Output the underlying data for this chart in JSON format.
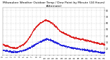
{
  "title": "Milwaukee Weather Outdoor Temp / Dew Point by Minute (24 Hours) (Alternate)",
  "title_fontsize": 3.2,
  "bg_color": "#ffffff",
  "plot_bg_color": "#ffffff",
  "text_color": "#000000",
  "grid_color": "#aaaaaa",
  "temp_color": "#dd2222",
  "dew_color": "#2222dd",
  "ylim": [
    10,
    85
  ],
  "xlim": [
    0,
    1440
  ],
  "yticks": [
    20,
    30,
    40,
    50,
    60,
    70,
    80
  ],
  "ytick_labels": [
    "20",
    "30",
    "40",
    "50",
    "60",
    "70",
    "80"
  ],
  "x_hours": [
    0,
    1,
    2,
    3,
    4,
    5,
    6,
    7,
    8,
    9,
    10,
    11,
    12,
    13,
    14,
    15,
    16,
    17,
    18,
    19,
    20,
    21,
    22,
    23,
    24
  ],
  "dot_size": 0.4,
  "temp_data": [
    27,
    26,
    25,
    25,
    24,
    23,
    22,
    22,
    22,
    21,
    21,
    22,
    23,
    24,
    25,
    26,
    27,
    29,
    31,
    34,
    37,
    40,
    43,
    47,
    50,
    53,
    55,
    57,
    59,
    61,
    62,
    63,
    64,
    65,
    65,
    64,
    63,
    62,
    61,
    59,
    57,
    55,
    53,
    51,
    49,
    47,
    46,
    45,
    44,
    43,
    42,
    41,
    40,
    39,
    38,
    38,
    37,
    37,
    36,
    36,
    35,
    35,
    35,
    34,
    34,
    33,
    33,
    32,
    32,
    31,
    31,
    30,
    30,
    29,
    29,
    28,
    28,
    28,
    27,
    27
  ],
  "dew_data": [
    18,
    17,
    17,
    17,
    16,
    16,
    16,
    15,
    15,
    15,
    15,
    15,
    16,
    16,
    17,
    17,
    18,
    18,
    19,
    20,
    21,
    22,
    23,
    24,
    25,
    27,
    28,
    29,
    30,
    31,
    32,
    33,
    34,
    35,
    35,
    35,
    34,
    34,
    33,
    32,
    31,
    30,
    29,
    28,
    27,
    26,
    25,
    25,
    24,
    24,
    23,
    23,
    22,
    22,
    21,
    21,
    21,
    20,
    20,
    20,
    19,
    19,
    19,
    19,
    18,
    18,
    18,
    17,
    17,
    17,
    16,
    16,
    16,
    15,
    15,
    15,
    14,
    14,
    14,
    14
  ]
}
